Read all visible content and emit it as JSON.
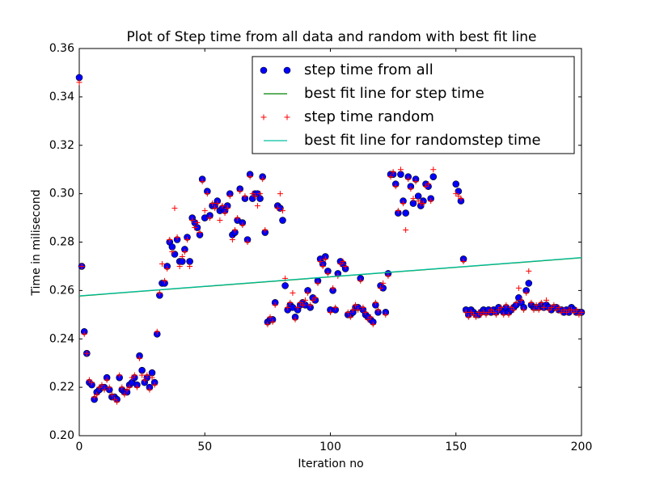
{
  "chart_data": {
    "type": "scatter",
    "title": "Plot of Step time from all data and random with best fit line",
    "xlabel": "Iteration no",
    "ylabel": "Time in milisecond",
    "xlim": [
      0,
      200
    ],
    "ylim": [
      0.2,
      0.36
    ],
    "xticks": [
      0,
      50,
      100,
      150,
      200
    ],
    "yticks": [
      {
        "value": 0.2,
        "label": "0.20"
      },
      0.22,
      0.24,
      0.26,
      0.28,
      {
        "value": 0.3,
        "label": "0.30"
      },
      0.32,
      0.34,
      0.36
    ],
    "legend": "upper right",
    "x": [
      0,
      1,
      2,
      3,
      4,
      5,
      6,
      7,
      8,
      9,
      10,
      11,
      12,
      13,
      14,
      15,
      16,
      17,
      18,
      19,
      20,
      21,
      22,
      23,
      24,
      25,
      26,
      27,
      28,
      29,
      30,
      31,
      32,
      33,
      34,
      35,
      36,
      37,
      38,
      39,
      40,
      41,
      42,
      43,
      44,
      45,
      46,
      47,
      48,
      49,
      50,
      51,
      52,
      53,
      54,
      55,
      56,
      57,
      58,
      59,
      60,
      61,
      62,
      63,
      64,
      65,
      66,
      67,
      68,
      69,
      70,
      71,
      72,
      73,
      74,
      75,
      76,
      77,
      78,
      79,
      80,
      81,
      82,
      83,
      84,
      85,
      86,
      87,
      88,
      89,
      90,
      91,
      92,
      93,
      94,
      95,
      96,
      97,
      98,
      99,
      100,
      101,
      102,
      103,
      104,
      105,
      106,
      107,
      108,
      109,
      110,
      111,
      112,
      113,
      114,
      115,
      116,
      117,
      118,
      119,
      120,
      121,
      122,
      123,
      124,
      125,
      126,
      127,
      128,
      129,
      130,
      131,
      132,
      133,
      134,
      135,
      136,
      137,
      138,
      139,
      140,
      141,
      142,
      143,
      144,
      145,
      146,
      147,
      148,
      149,
      150,
      151,
      152,
      153,
      154,
      155,
      156,
      157,
      158,
      159,
      160,
      161,
      162,
      163,
      164,
      165,
      166,
      167,
      168,
      169,
      170,
      171,
      172,
      173,
      174,
      175,
      176,
      177,
      178,
      179,
      180,
      181,
      182,
      183,
      184,
      185,
      186,
      187,
      188,
      189,
      190,
      191,
      192,
      193,
      194,
      195,
      196,
      197,
      198,
      199,
      200
    ],
    "series": [
      {
        "name": "step time from all",
        "color": "#0000ff",
        "marker": "circle",
        "values": [
          0.348,
          0.27,
          0.243,
          0.234,
          0.222,
          0.221,
          0.215,
          0.218,
          0.219,
          0.22,
          0.22,
          0.224,
          0.219,
          0.216,
          0.216,
          0.215,
          0.224,
          0.219,
          0.218,
          0.218,
          0.221,
          0.222,
          0.224,
          0.221,
          0.233,
          0.227,
          0.222,
          0.224,
          0.22,
          0.226,
          0.222,
          0.242,
          0.258,
          0.263,
          0.263,
          0.27,
          0.28,
          0.278,
          0.275,
          0.281,
          0.272,
          0.272,
          0.277,
          0.282,
          0.272,
          0.29,
          0.288,
          0.286,
          0.283,
          0.306,
          0.29,
          0.301,
          0.291,
          0.295,
          0.295,
          0.297,
          0.293,
          0.294,
          0.293,
          0.295,
          0.3,
          0.283,
          0.284,
          0.289,
          0.302,
          0.288,
          0.298,
          0.281,
          0.308,
          0.298,
          0.3,
          0.3,
          0.298,
          0.307,
          0.284,
          0.247,
          0.248,
          0.248,
          0.255,
          0.295,
          0.294,
          0.289,
          0.262,
          0.252,
          0.254,
          0.253,
          0.249,
          0.252,
          0.254,
          0.255,
          0.254,
          0.26,
          0.253,
          0.257,
          0.256,
          0.264,
          0.273,
          0.271,
          0.274,
          0.268,
          0.252,
          0.26,
          0.252,
          0.267,
          0.272,
          0.271,
          0.269,
          0.25,
          0.25,
          0.251,
          0.253,
          0.253,
          0.265,
          0.252,
          0.25,
          0.249,
          0.248,
          0.247,
          0.254,
          0.251,
          0.262,
          0.261,
          0.251,
          0.267,
          0.308,
          0.308,
          0.304,
          0.292,
          0.308,
          0.297,
          0.292,
          0.307,
          0.303,
          0.296,
          0.306,
          0.299,
          0.295,
          0.297,
          0.304,
          0.303,
          0.298,
          0.307,
          null,
          null,
          null,
          null,
          null,
          null,
          null,
          null,
          0.304,
          0.301,
          0.297,
          0.273,
          0.252,
          0.25,
          0.252,
          0.251,
          0.25,
          0.25,
          0.251,
          0.252,
          0.251,
          0.252,
          0.251,
          0.252,
          0.251,
          0.253,
          0.252,
          0.251,
          0.253,
          0.251,
          0.252,
          0.253,
          0.254,
          0.257,
          0.255,
          0.253,
          0.26,
          0.263,
          0.254,
          0.253,
          0.253,
          0.253,
          0.254,
          0.253,
          0.254,
          0.253,
          0.252,
          0.253,
          0.253,
          0.252,
          0.252,
          0.251,
          0.252,
          0.251,
          0.253,
          0.252,
          0.251,
          0.251,
          0.251
        ]
      },
      {
        "name": "best fit line for step time",
        "color": "#008000",
        "marker": "line",
        "x": [
          0,
          200
        ],
        "values": [
          0.2577,
          0.2735
        ]
      },
      {
        "name": "step time random",
        "color": "#ff0000",
        "marker": "plus",
        "values": [
          0.346,
          0.27,
          0.242,
          0.234,
          0.223,
          0.222,
          0.216,
          0.217,
          0.22,
          0.221,
          0.219,
          0.223,
          0.22,
          0.217,
          0.215,
          0.214,
          0.225,
          0.22,
          0.217,
          0.219,
          0.22,
          0.224,
          0.225,
          0.22,
          0.232,
          0.225,
          0.223,
          0.225,
          0.219,
          0.224,
          0.221,
          0.243,
          0.259,
          0.271,
          0.264,
          0.269,
          0.281,
          0.276,
          0.294,
          0.282,
          0.27,
          0.274,
          0.276,
          0.281,
          0.27,
          0.289,
          0.286,
          0.288,
          0.284,
          0.305,
          0.293,
          0.3,
          0.29,
          0.296,
          0.294,
          0.296,
          0.289,
          0.295,
          0.292,
          0.294,
          0.299,
          0.281,
          0.285,
          0.29,
          0.301,
          0.287,
          0.299,
          0.28,
          0.307,
          0.3,
          0.299,
          0.295,
          0.3,
          0.306,
          0.285,
          0.246,
          0.249,
          0.247,
          0.254,
          0.294,
          0.3,
          0.293,
          0.265,
          0.253,
          0.255,
          0.259,
          0.248,
          0.253,
          0.255,
          0.254,
          0.256,
          0.259,
          0.254,
          0.256,
          0.257,
          0.263,
          0.272,
          0.27,
          0.273,
          0.267,
          0.251,
          0.261,
          0.253,
          0.266,
          0.271,
          0.272,
          0.27,
          0.251,
          0.249,
          0.252,
          0.254,
          0.252,
          0.264,
          0.253,
          0.251,
          0.248,
          0.249,
          0.246,
          0.255,
          0.252,
          0.261,
          0.263,
          0.25,
          0.266,
          0.307,
          0.309,
          0.303,
          0.293,
          0.31,
          0.296,
          0.285,
          0.306,
          0.302,
          0.298,
          0.305,
          0.297,
          0.296,
          0.296,
          0.303,
          0.304,
          0.297,
          0.31,
          null,
          null,
          null,
          null,
          null,
          null,
          null,
          null,
          0.3,
          0.299,
          0.298,
          0.272,
          0.251,
          0.249,
          0.251,
          0.25,
          0.249,
          0.251,
          0.25,
          0.251,
          0.25,
          0.251,
          0.252,
          0.251,
          0.25,
          0.252,
          0.253,
          0.25,
          0.254,
          0.25,
          0.253,
          0.252,
          0.255,
          0.261,
          0.256,
          0.252,
          0.259,
          0.268,
          0.255,
          0.252,
          0.254,
          0.252,
          0.255,
          0.253,
          0.256,
          0.252,
          0.253,
          0.254,
          0.252,
          0.253,
          0.251,
          0.252,
          0.251,
          0.252,
          0.252,
          0.251,
          0.252,
          0.25,
          0.251
        ]
      },
      {
        "name": "best fit line for randomstep time",
        "color": "#00bfa0",
        "marker": "line",
        "x": [
          0,
          200
        ],
        "values": [
          0.2578,
          0.2736
        ]
      }
    ]
  }
}
